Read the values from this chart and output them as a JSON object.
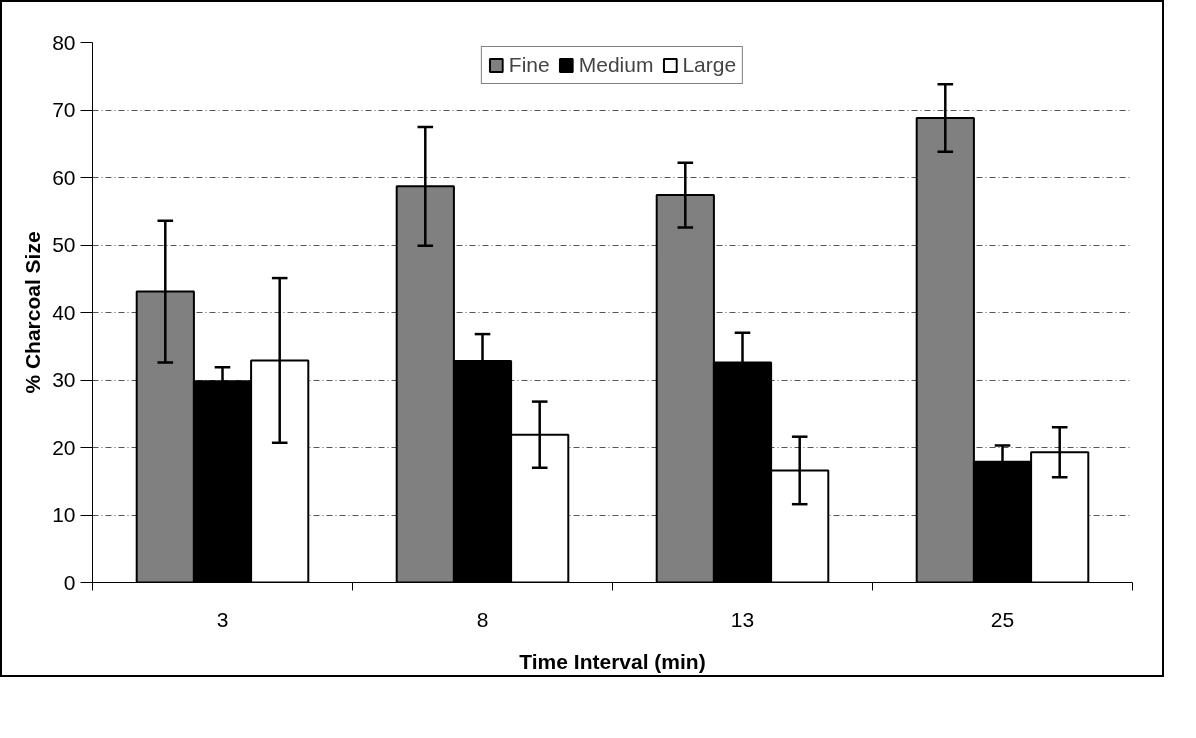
{
  "chart_data": {
    "type": "bar",
    "xlabel": "Time Interval (min)",
    "ylabel": "% Charcoal Size",
    "categories": [
      "3",
      "8",
      "13",
      "25"
    ],
    "series": [
      {
        "name": "Fine",
        "color": "#808080",
        "values": [
          43.1,
          58.7,
          57.4,
          68.8
        ],
        "errors": [
          10.5,
          8.8,
          4.8,
          5.0
        ]
      },
      {
        "name": "Medium",
        "color": "#000000",
        "values": [
          29.8,
          32.8,
          32.6,
          17.9
        ],
        "errors": [
          2.1,
          4.0,
          4.4,
          2.4
        ]
      },
      {
        "name": "Large",
        "color": "#ffffff",
        "values": [
          32.9,
          21.9,
          16.6,
          19.3
        ],
        "errors": [
          12.2,
          4.9,
          5.0,
          3.7
        ]
      }
    ],
    "ylim": [
      0,
      80
    ],
    "yticks": [
      0,
      10,
      20,
      30,
      40,
      50,
      60,
      70,
      80
    ],
    "grid": "y",
    "legend": "top"
  }
}
